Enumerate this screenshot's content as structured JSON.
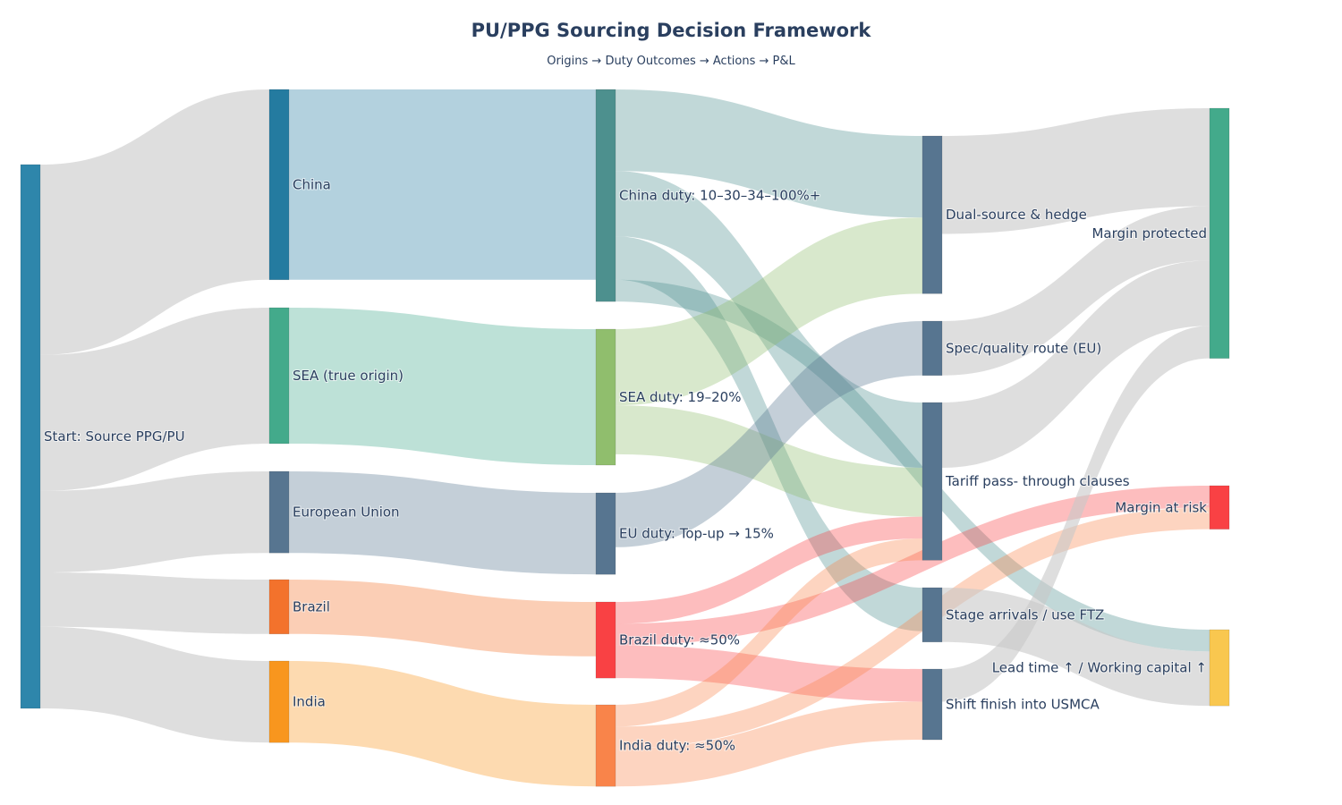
{
  "title": "PU/PPG Sourcing Decision Framework",
  "subtitle": "Origins → Duty Outcomes → Actions → P&L",
  "chart_data": {
    "type": "sankey",
    "title": "PU/PPG Sourcing Decision Framework",
    "subtitle": "Origins → Duty Outcomes → Actions → P&L",
    "nodes": [
      {
        "label": "Start: Source PPG/PU",
        "color": "#2E86AB"
      },
      {
        "label": "China",
        "color": "#247BA0"
      },
      {
        "label": "SEA (true origin)",
        "color": "#43AA8B"
      },
      {
        "label": "European Union",
        "color": "#577590"
      },
      {
        "label": "Brazil",
        "color": "#F3722C"
      },
      {
        "label": "India",
        "color": "#F8961E"
      },
      {
        "label": "China duty: 10–30–34–100%+",
        "color": "#4D908E"
      },
      {
        "label": "SEA duty: 19–20%",
        "color": "#90BE6D"
      },
      {
        "label": "EU duty: Top-up → 15%",
        "color": "#577590"
      },
      {
        "label": "Brazil duty: ≈50%",
        "color": "#F94144"
      },
      {
        "label": "India duty: ≈50%",
        "color": "#F9844A"
      },
      {
        "label": "Dual-source & hedge",
        "color": "#577590"
      },
      {
        "label": "Spec/quality route (EU)",
        "color": "#577590"
      },
      {
        "label": "Tariff pass- through clauses",
        "color": "#577590"
      },
      {
        "label": "Stage arrivals / use FTZ",
        "color": "#577590"
      },
      {
        "label": "Shift finish into USMCA",
        "color": "#577590"
      },
      {
        "label": "Margin protected",
        "color": "#43AA8B"
      },
      {
        "label": "Margin at risk",
        "color": "#F94144"
      },
      {
        "label": "Lead time ↑ / Working capital ↑",
        "color": "#F9C74F"
      }
    ],
    "links": [
      {
        "source": 0,
        "target": 1,
        "value": 35,
        "color": "rgba(200,200,200,0.6)"
      },
      {
        "source": 0,
        "target": 2,
        "value": 25,
        "color": "rgba(200,200,200,0.6)"
      },
      {
        "source": 0,
        "target": 3,
        "value": 15,
        "color": "rgba(200,200,200,0.6)"
      },
      {
        "source": 0,
        "target": 4,
        "value": 10,
        "color": "rgba(200,200,200,0.6)"
      },
      {
        "source": 0,
        "target": 5,
        "value": 15,
        "color": "rgba(200,200,200,0.6)"
      },
      {
        "source": 1,
        "target": 6,
        "value": 35,
        "color": "rgba(36,123,160,0.35)"
      },
      {
        "source": 2,
        "target": 7,
        "value": 25,
        "color": "rgba(67,170,139,0.35)"
      },
      {
        "source": 3,
        "target": 8,
        "value": 15,
        "color": "rgba(87,117,144,0.35)"
      },
      {
        "source": 4,
        "target": 9,
        "value": 10,
        "color": "rgba(243,114,44,0.35)"
      },
      {
        "source": 5,
        "target": 10,
        "value": 15,
        "color": "rgba(248,150,30,0.35)"
      },
      {
        "source": 6,
        "target": 11,
        "value": 15,
        "color": "rgba(77,144,142,0.35)"
      },
      {
        "source": 6,
        "target": 13,
        "value": 12,
        "color": "rgba(77,144,142,0.35)"
      },
      {
        "source": 6,
        "target": 14,
        "value": 8,
        "color": "rgba(77,144,142,0.35)"
      },
      {
        "source": 6,
        "target": 18,
        "value": 4,
        "color": "rgba(77,144,142,0.35)"
      },
      {
        "source": 7,
        "target": 11,
        "value": 14,
        "color": "rgba(144,190,109,0.35)"
      },
      {
        "source": 7,
        "target": 13,
        "value": 9,
        "color": "rgba(144,190,109,0.35)"
      },
      {
        "source": 8,
        "target": 12,
        "value": 10,
        "color": "rgba(87,117,144,0.35)"
      },
      {
        "source": 9,
        "target": 13,
        "value": 4,
        "color": "rgba(249,65,68,0.35)"
      },
      {
        "source": 9,
        "target": 17,
        "value": 4,
        "color": "rgba(249,65,68,0.35)"
      },
      {
        "source": 9,
        "target": 15,
        "value": 6,
        "color": "rgba(249,65,68,0.35)"
      },
      {
        "source": 10,
        "target": 13,
        "value": 4,
        "color": "rgba(249,132,74,0.35)"
      },
      {
        "source": 10,
        "target": 17,
        "value": 4,
        "color": "rgba(249,132,74,0.35)"
      },
      {
        "source": 10,
        "target": 15,
        "value": 7,
        "color": "rgba(249,132,74,0.35)"
      },
      {
        "source": 11,
        "target": 16,
        "value": 18,
        "color": "rgba(200,200,200,0.6)"
      },
      {
        "source": 12,
        "target": 16,
        "value": 10,
        "color": "rgba(200,200,200,0.6)"
      },
      {
        "source": 13,
        "target": 16,
        "value": 12,
        "color": "rgba(200,200,200,0.6)"
      },
      {
        "source": 14,
        "target": 18,
        "value": 10,
        "color": "rgba(200,200,200,0.6)"
      },
      {
        "source": 15,
        "target": 16,
        "value": 6,
        "color": "rgba(200,200,200,0.6)"
      }
    ]
  }
}
